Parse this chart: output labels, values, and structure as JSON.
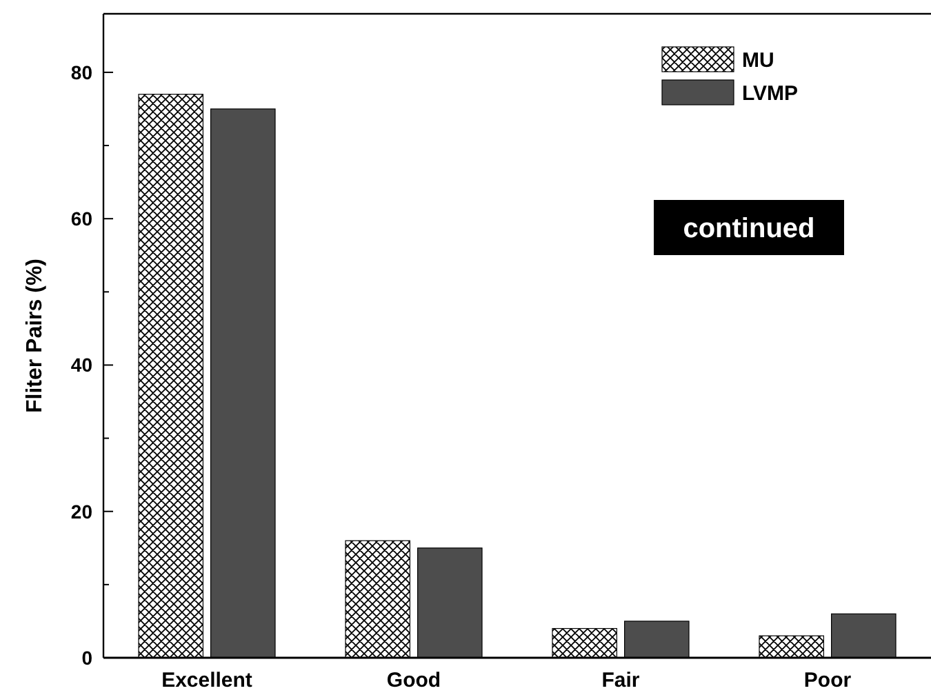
{
  "chart_data": {
    "type": "bar",
    "ylabel": "Fliter Pairs (%)",
    "categories": [
      "Excellent",
      "Good",
      "Fair",
      "Poor"
    ],
    "series": [
      {
        "name": "MU",
        "color": "#000000",
        "values": [
          77,
          16,
          4,
          3
        ]
      },
      {
        "name": "LVMP",
        "color": "#4d4d4d",
        "values": [
          75,
          15,
          5,
          6
        ]
      }
    ],
    "ylim": [
      0,
      88
    ],
    "yticks": [
      0,
      {
        "value": 10,
        "label": null
      },
      20,
      {
        "value": 30,
        "label": null
      },
      40,
      {
        "value": 50,
        "label": null
      },
      60,
      {
        "value": 70,
        "label": null
      },
      80
    ],
    "grid": false,
    "legend": "top right",
    "annotations": [
      "continued"
    ]
  }
}
